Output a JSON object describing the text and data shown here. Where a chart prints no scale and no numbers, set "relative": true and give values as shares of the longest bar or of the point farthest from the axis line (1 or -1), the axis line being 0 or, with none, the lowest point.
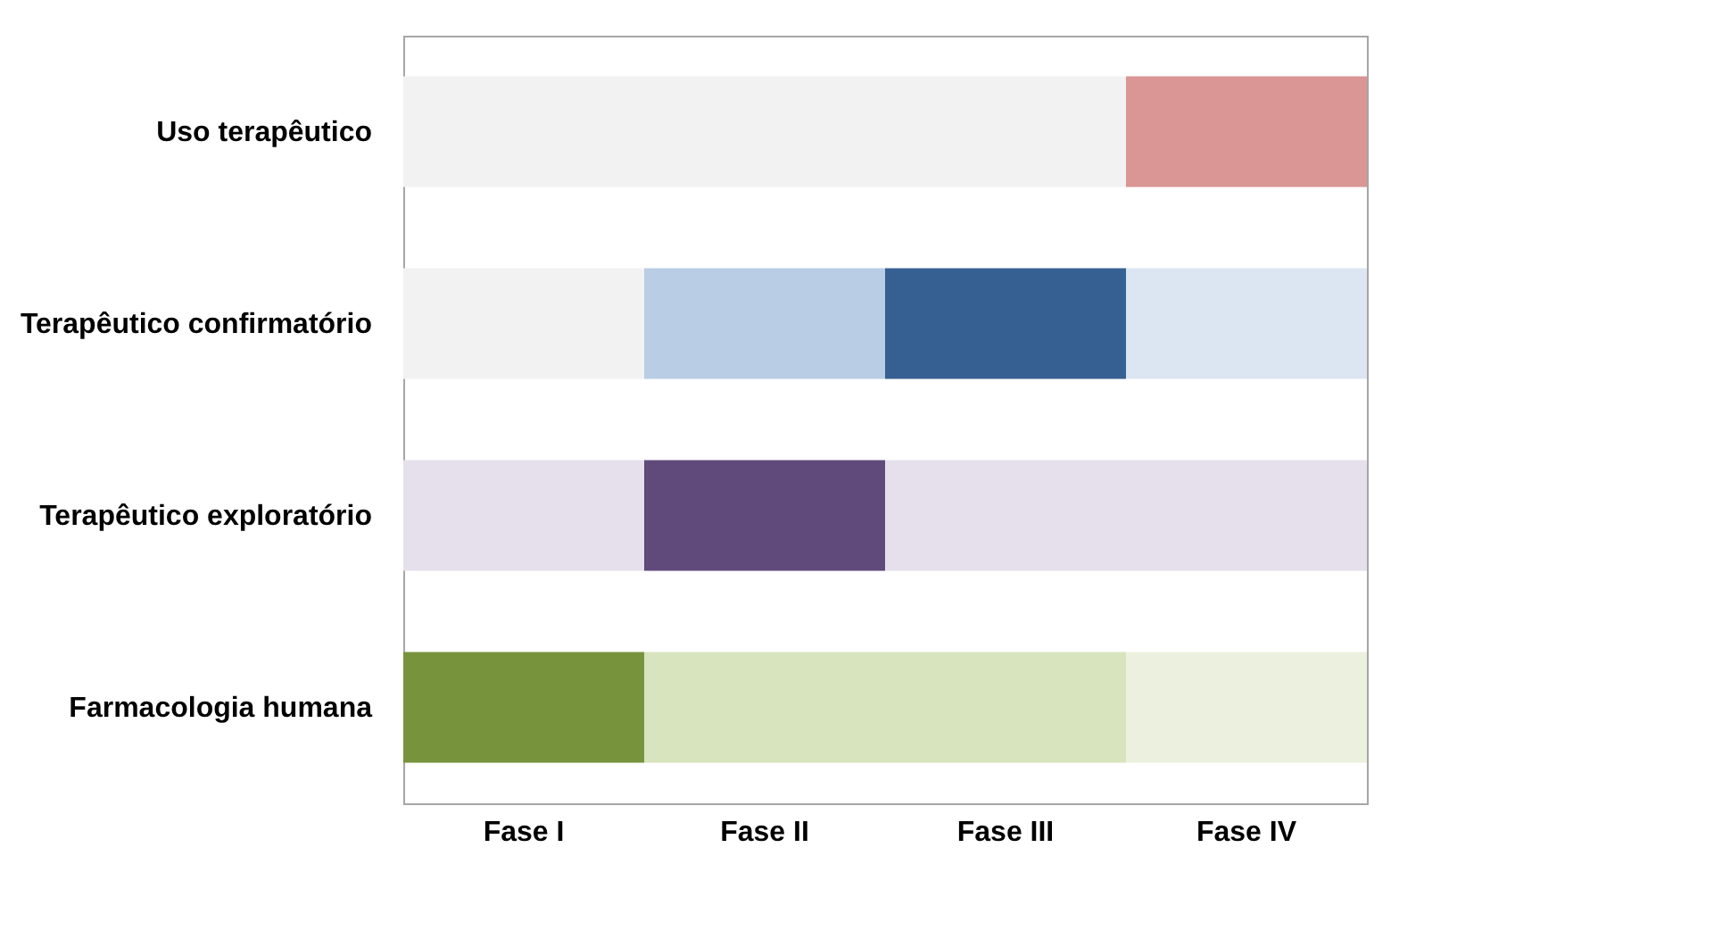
{
  "chart_data": {
    "type": "bar",
    "orientation": "horizontal",
    "stacked": true,
    "relative": true,
    "categories": [
      "Uso terapêutico",
      "Terapêutico confirmatório",
      "Terapêutico exploratório",
      "Farmacologia humana"
    ],
    "series": [
      {
        "colors": [
          "#f2f2f2",
          "#f2f2f2",
          "#e6e0ec",
          "#77933c"
        ],
        "values": [
          0.25,
          0.25,
          0.25,
          0.25
        ]
      },
      {
        "colors": [
          "#f2f2f2",
          "#b9cde5",
          "#604a7b",
          "#d7e4bd"
        ],
        "values": [
          0.25,
          0.25,
          0.25,
          0.25
        ]
      },
      {
        "colors": [
          "#f2f2f2",
          "#376092",
          "#e6e0ec",
          "#d7e4bd"
        ],
        "values": [
          0.25,
          0.25,
          0.25,
          0.25
        ]
      },
      {
        "colors": [
          "#d99694",
          "#dce6f2",
          "#e6e0ec",
          "#ebf1de"
        ],
        "values": [
          0.25,
          0.25,
          0.25,
          0.25
        ]
      }
    ],
    "annotations": [
      "Fase I",
      "Fase II",
      "Fase III",
      "Fase IV"
    ]
  }
}
